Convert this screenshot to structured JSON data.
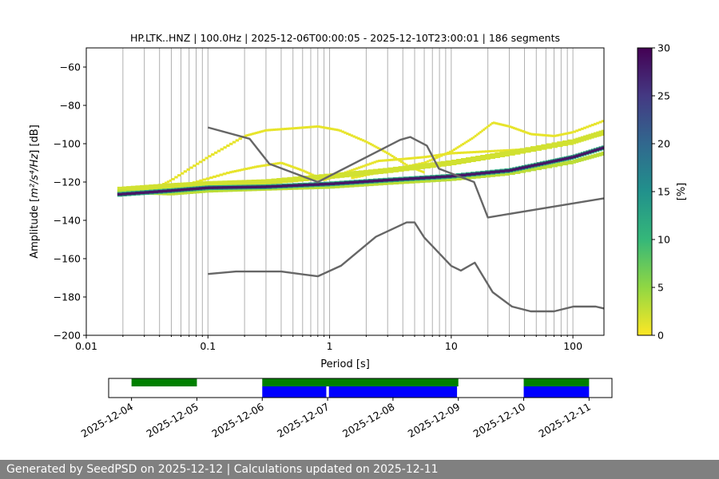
{
  "chart_data": [
    {
      "type": "heatmap",
      "title": "HP.LTK..HNZ | 100.0Hz | 2025-12-06T00:00:05 - 2025-12-10T23:00:01 | 186 segments",
      "xlabel": "Period [s]",
      "ylabel_prefix": "Amplitude [",
      "ylabel_math": "m²/s⁴/Hz",
      "ylabel_suffix": "] [dB]",
      "x_scale": "log",
      "xlim": [
        0.01,
        180
      ],
      "ylim": [
        -200,
        -50
      ],
      "grid": "vertical lines at log minor ticks",
      "x_ticks": [
        {
          "value": 0.01,
          "label": "0.01"
        },
        {
          "value": 0.1,
          "label": "0.1"
        },
        {
          "value": 1,
          "label": "1"
        },
        {
          "value": 10,
          "label": "10"
        },
        {
          "value": 100,
          "label": "100"
        }
      ],
      "y_ticks": [
        {
          "value": -60,
          "label": "−60"
        },
        {
          "value": -80,
          "label": "−80"
        },
        {
          "value": -100,
          "label": "−100"
        },
        {
          "value": -120,
          "label": "−120"
        },
        {
          "value": -140,
          "label": "−140"
        },
        {
          "value": -160,
          "label": "−160"
        },
        {
          "value": -180,
          "label": "−180"
        },
        {
          "value": -200,
          "label": "−200"
        }
      ],
      "colorbar": {
        "label": "[%]",
        "range": [
          0,
          30
        ],
        "colors": [
          "#fde725",
          "#90d743",
          "#35b779",
          "#21918c",
          "#31688e",
          "#443983",
          "#440154"
        ],
        "ticks": [
          {
            "value": 0,
            "label": "0"
          },
          {
            "value": 5,
            "label": "5"
          },
          {
            "value": 10,
            "label": "10"
          },
          {
            "value": 15,
            "label": "15"
          },
          {
            "value": 20,
            "label": "20"
          },
          {
            "value": 25,
            "label": "25"
          },
          {
            "value": 30,
            "label": "30"
          }
        ]
      },
      "density_bands": [
        {
          "name": "mode",
          "percent": 28,
          "points": [
            [
              0.018,
              -126.5
            ],
            [
              0.05,
              -124.5
            ],
            [
              0.1,
              -123
            ],
            [
              0.3,
              -122.5
            ],
            [
              1,
              -121
            ],
            [
              3,
              -119
            ],
            [
              10,
              -117
            ],
            [
              30,
              -114
            ],
            [
              60,
              -110
            ],
            [
              100,
              -107
            ],
            [
              180,
              -102
            ]
          ]
        },
        {
          "name": "upper-spread",
          "percent": 2,
          "points": [
            [
              0.018,
              -124
            ],
            [
              0.05,
              -122
            ],
            [
              0.1,
              -121
            ],
            [
              0.3,
              -120
            ],
            [
              1,
              -117
            ],
            [
              3,
              -114
            ],
            [
              10,
              -110
            ],
            [
              30,
              -105
            ],
            [
              100,
              -99
            ],
            [
              180,
              -94
            ]
          ]
        },
        {
          "name": "lower-spread",
          "percent": 3,
          "points": [
            [
              0.018,
              -125
            ],
            [
              0.05,
              -126
            ],
            [
              0.1,
              -124.5
            ],
            [
              0.3,
              -123.5
            ],
            [
              1,
              -122.5
            ],
            [
              3,
              -120.5
            ],
            [
              10,
              -118.5
            ],
            [
              30,
              -115.5
            ],
            [
              100,
              -109.5
            ],
            [
              180,
              -105
            ]
          ]
        }
      ],
      "excursions": [
        {
          "name": "excursion-a",
          "percent": 1,
          "points": [
            [
              0.03,
              -126
            ],
            [
              0.05,
              -119
            ],
            [
              0.1,
              -107
            ],
            [
              0.2,
              -96
            ],
            [
              0.3,
              -93
            ],
            [
              0.5,
              -92
            ],
            [
              0.8,
              -91
            ],
            [
              1.2,
              -93
            ],
            [
              2,
              -99
            ],
            [
              3,
              -105
            ],
            [
              4.5,
              -112
            ],
            [
              6,
              -115
            ]
          ]
        },
        {
          "name": "excursion-b",
          "percent": 1,
          "points": [
            [
              0.07,
              -121
            ],
            [
              0.15,
              -115
            ],
            [
              0.25,
              -112
            ],
            [
              0.4,
              -110
            ],
            [
              0.6,
              -114
            ],
            [
              0.9,
              -119
            ],
            [
              1.5,
              -114
            ],
            [
              2.5,
              -109
            ],
            [
              4,
              -108
            ],
            [
              6,
              -107
            ],
            [
              10,
              -105
            ],
            [
              20,
              -104
            ],
            [
              40,
              -103
            ],
            [
              80,
              -100
            ],
            [
              180,
              -95
            ]
          ]
        },
        {
          "name": "excursion-c",
          "percent": 1,
          "points": [
            [
              1.5,
              -118
            ],
            [
              3,
              -114
            ],
            [
              6,
              -110
            ],
            [
              10,
              -104
            ],
            [
              15,
              -97
            ],
            [
              22,
              -89
            ],
            [
              30,
              -91
            ],
            [
              45,
              -95
            ],
            [
              70,
              -96
            ],
            [
              100,
              -94
            ],
            [
              180,
              -88
            ]
          ]
        }
      ],
      "series": [
        {
          "name": "new-high-noise-model",
          "points": [
            [
              0.1,
              -91.5
            ],
            [
              0.22,
              -97.4
            ],
            [
              0.32,
              -110.5
            ],
            [
              0.8,
              -120
            ],
            [
              3.8,
              -98
            ],
            [
              4.6,
              -96.5
            ],
            [
              6.3,
              -101
            ],
            [
              7.9,
              -113
            ],
            [
              15.4,
              -120
            ],
            [
              20,
              -138.5
            ],
            [
              180,
              -128.5
            ]
          ]
        },
        {
          "name": "new-low-noise-model",
          "points": [
            [
              0.1,
              -168
            ],
            [
              0.17,
              -166.7
            ],
            [
              0.4,
              -166.7
            ],
            [
              0.8,
              -169.2
            ],
            [
              1.24,
              -163.7
            ],
            [
              2.4,
              -148.6
            ],
            [
              4.3,
              -141.1
            ],
            [
              5,
              -141.1
            ],
            [
              6,
              -149
            ],
            [
              10,
              -163.8
            ],
            [
              12,
              -166.2
            ],
            [
              15.6,
              -162.1
            ],
            [
              21.9,
              -177.5
            ],
            [
              31.6,
              -185
            ],
            [
              45,
              -187.5
            ],
            [
              70,
              -187.5
            ],
            [
              101,
              -185
            ],
            [
              154,
              -185
            ],
            [
              180,
              -186
            ]
          ]
        }
      ]
    },
    {
      "type": "timeline",
      "dates": [
        "2025-12-04",
        "2025-12-05",
        "2025-12-06",
        "2025-12-07",
        "2025-12-08",
        "2025-12-09",
        "2025-12-10",
        "2025-12-11"
      ],
      "range_days": [
        -0.35,
        7.35
      ],
      "green_bars": [
        [
          0,
          1
        ],
        [
          2,
          5.0
        ],
        [
          6,
          7
        ]
      ],
      "blue_bars": [
        [
          2,
          2.98
        ],
        [
          3.02,
          4.98
        ],
        [
          6,
          7
        ]
      ]
    }
  ],
  "footer": {
    "text": "Generated by SeedPSD on 2025-12-12 | Calculations updated on 2025-12-11"
  }
}
